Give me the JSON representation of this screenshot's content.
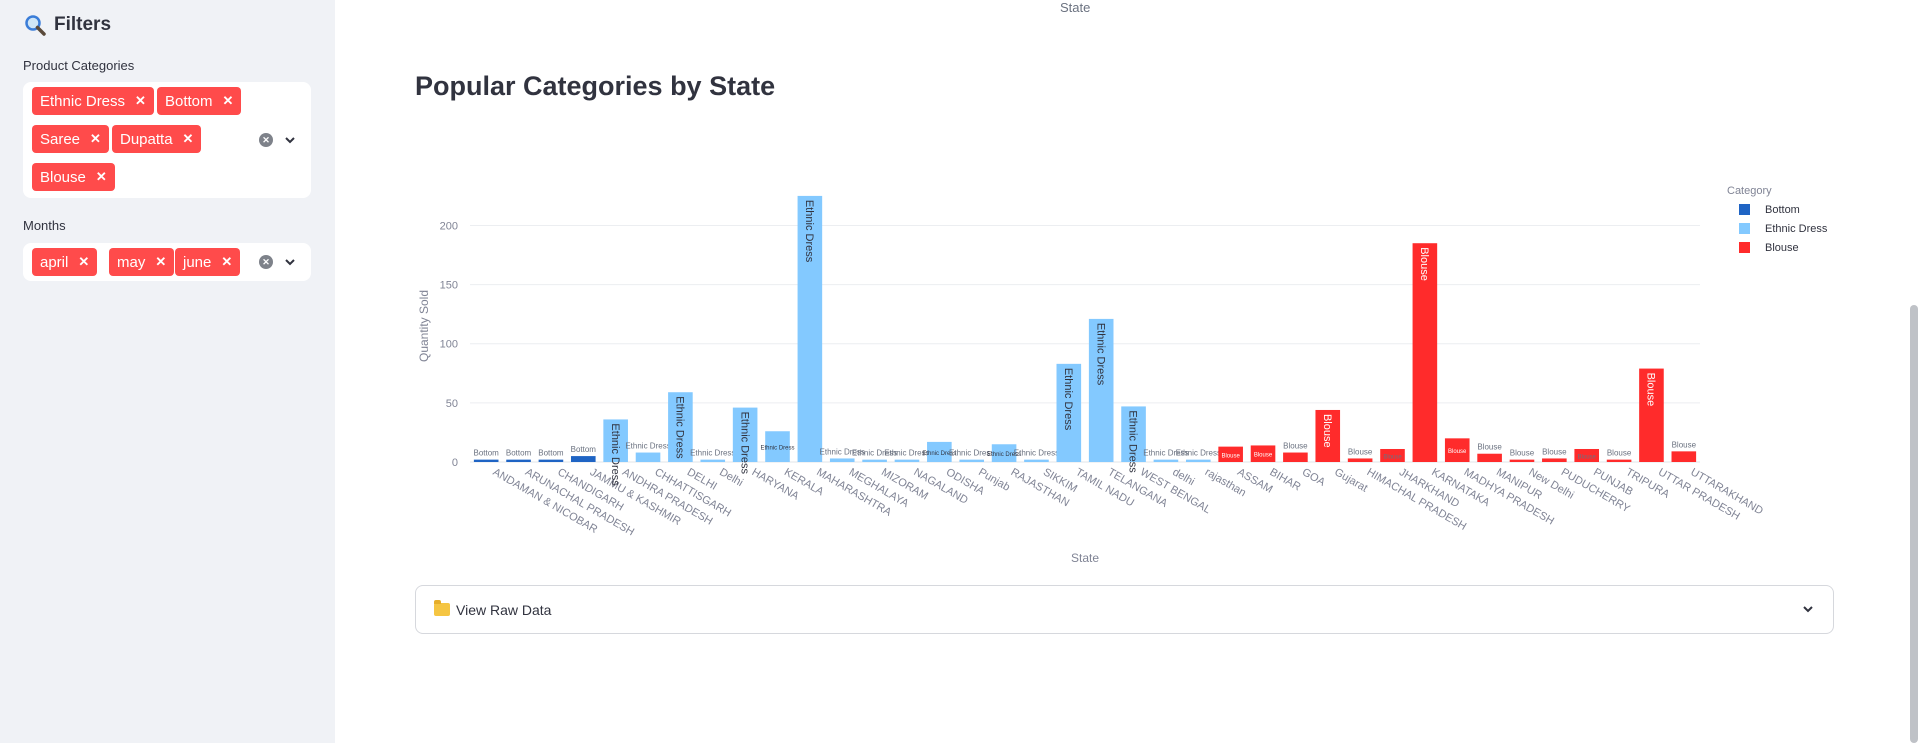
{
  "sidebar": {
    "title": "Filters",
    "categories_label": "Product Categories",
    "categories": [
      "Ethnic Dress",
      "Bottom",
      "Saree",
      "Dupatta",
      "Blouse"
    ],
    "months_label": "Months",
    "months": [
      "april",
      "may",
      "june"
    ]
  },
  "main": {
    "top_axis_label": "State",
    "heading": "Popular Categories by State",
    "expander_label": "View Raw Data"
  },
  "chart_data": {
    "type": "bar",
    "xlabel": "State",
    "ylabel": "Quantity Sold",
    "ylim": [
      0,
      230
    ],
    "yticks": [
      0,
      50,
      100,
      150,
      200
    ],
    "grid": true,
    "legend": {
      "title": "Category",
      "placement": "top-right"
    },
    "colors": {
      "Bottom": "#1f64c4",
      "Ethnic Dress": "#83c9ff",
      "Blouse": "#ff2b2b"
    },
    "series": [
      {
        "name": "Bottom",
        "color": "#1f64c4"
      },
      {
        "name": "Ethnic Dress",
        "color": "#83c9ff"
      },
      {
        "name": "Blouse",
        "color": "#ff2b2b"
      }
    ],
    "categories": [
      "ANDAMAN & NICOBAR",
      "ARUNACHAL PRADESH",
      "CHANDIGARH",
      "JAMMU & KASHMIR",
      "ANDHRA PRADESH",
      "CHHATTISGARH",
      "DELHI",
      "Delhi",
      "HARYANA",
      "KERALA",
      "MAHARASHTRA",
      "MEGHALAYA",
      "MIZORAM",
      "NAGALAND",
      "ODISHA",
      "Punjab",
      "RAJASTHAN",
      "SIKKIM",
      "TAMIL NADU",
      "TELANGANA",
      "WEST BENGAL",
      "delhi",
      "rajasthan",
      "ASSAM",
      "BIHAR",
      "GOA",
      "Gujarat",
      "HIMACHAL PRADESH",
      "JHARKHAND",
      "KARNATAKA",
      "MADHYA PRADESH",
      "MANIPUR",
      "New Delhi",
      "PUDUCHERRY",
      "PUNJAB",
      "TRIPURA",
      "UTTAR PRADESH",
      "UTTARAKHAND"
    ],
    "values": [
      2,
      2,
      2,
      5,
      36,
      8,
      59,
      2,
      46,
      26,
      225,
      3,
      2,
      2,
      17,
      2,
      15,
      2,
      83,
      121,
      47,
      2,
      2,
      13,
      14,
      8,
      44,
      3,
      11,
      185,
      20,
      7,
      2,
      3,
      11,
      2,
      79,
      9
    ],
    "bar_series": [
      "Bottom",
      "Bottom",
      "Bottom",
      "Bottom",
      "Ethnic Dress",
      "Ethnic Dress",
      "Ethnic Dress",
      "Ethnic Dress",
      "Ethnic Dress",
      "Ethnic Dress",
      "Ethnic Dress",
      "Ethnic Dress",
      "Ethnic Dress",
      "Ethnic Dress",
      "Ethnic Dress",
      "Ethnic Dress",
      "Ethnic Dress",
      "Ethnic Dress",
      "Ethnic Dress",
      "Ethnic Dress",
      "Ethnic Dress",
      "Ethnic Dress",
      "Ethnic Dress",
      "Blouse",
      "Blouse",
      "Blouse",
      "Blouse",
      "Blouse",
      "Blouse",
      "Blouse",
      "Blouse",
      "Blouse",
      "Blouse",
      "Blouse",
      "Blouse",
      "Blouse",
      "Blouse",
      "Blouse"
    ]
  }
}
